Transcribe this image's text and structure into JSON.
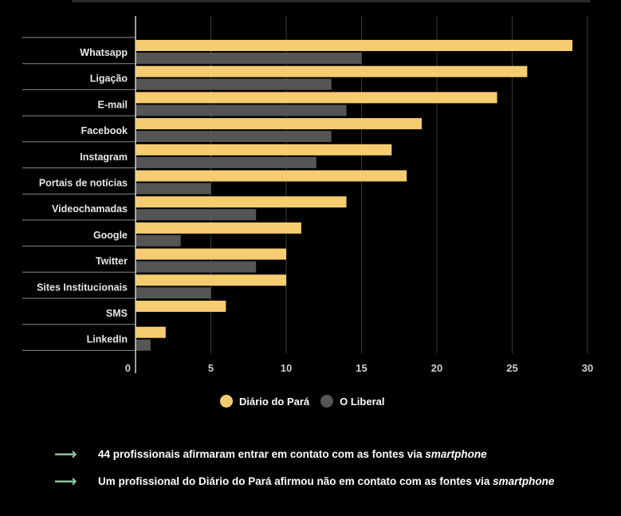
{
  "chart_data": {
    "type": "bar",
    "orientation": "horizontal",
    "title": "",
    "xlabel": "",
    "ylabel": "",
    "categories": [
      "Whatsapp",
      "Ligação",
      "E-mail",
      "Facebook",
      "Instagram",
      "Portais de notícias",
      "Videochamadas",
      "Google",
      "Twitter",
      "Sites Institucionais",
      "SMS",
      "LinkedIn"
    ],
    "series": [
      {
        "name": "Diário do Pará",
        "color": "#f5cc70",
        "values": [
          29,
          26,
          24,
          19,
          17,
          18,
          14,
          11,
          10,
          10,
          6,
          2
        ]
      },
      {
        "name": "O Liberal",
        "color": "#555555",
        "values": [
          15,
          13,
          14,
          13,
          12,
          5,
          8,
          3,
          8,
          5,
          0,
          1
        ]
      }
    ],
    "xlim": [
      0,
      30
    ],
    "xticks": [
      "0",
      "5",
      "10",
      "15",
      "20",
      "25",
      "30"
    ],
    "grid": true,
    "legend_position": "bottom"
  },
  "notes": {
    "line1_prefix": "44 profissionais afirmaram entrar em contato com as fontes via ",
    "line1_em": "smartphone",
    "line2_prefix": "Um profissional do Diário do Pará afirmou não em contato com as fontes via ",
    "line2_em": "smartphone"
  }
}
